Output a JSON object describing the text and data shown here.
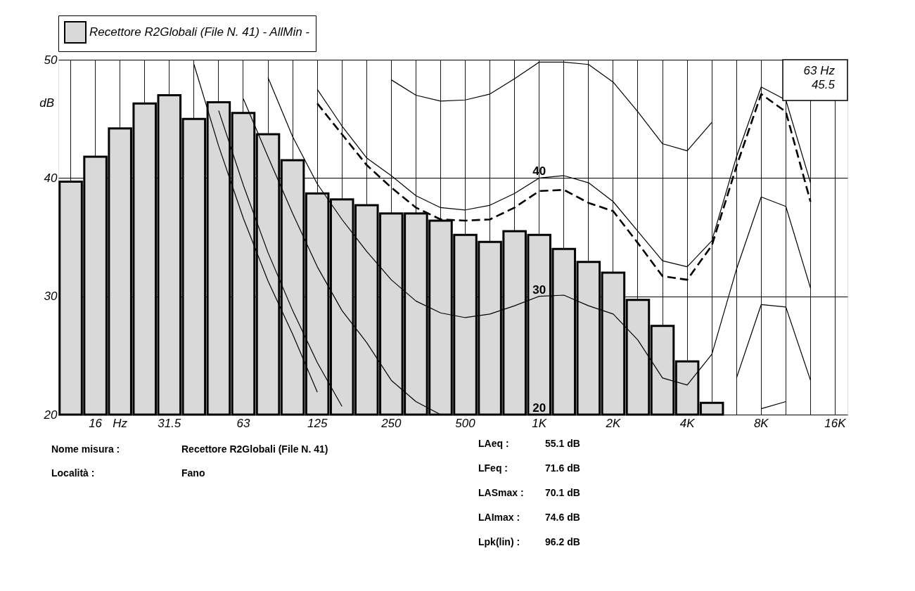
{
  "chart_data": {
    "type": "bar",
    "categories": [
      null,
      "16",
      "Hz",
      null,
      "31.5",
      null,
      null,
      "63",
      null,
      null,
      "125",
      null,
      null,
      "250",
      null,
      null,
      "500",
      null,
      null,
      "1K",
      null,
      null,
      "2K",
      null,
      null,
      "4K",
      null,
      null,
      "8K",
      null,
      null,
      "16K"
    ],
    "series": [
      {
        "name": "Recettore R2Globali (File N. 41) - AllMin -",
        "color": "#d9d9d9",
        "values": [
          39.7,
          41.8,
          44.2,
          46.3,
          47.0,
          45.0,
          46.4,
          45.5,
          43.7,
          41.5,
          38.7,
          38.2,
          37.7,
          37.0,
          37.0,
          36.4,
          35.2,
          34.6,
          35.5,
          35.2,
          34.0,
          32.9,
          32.0,
          29.7,
          27.5,
          24.5,
          21.0,
          null,
          null,
          null,
          null,
          null
        ]
      },
      {
        "type": "line",
        "color": "#000000",
        "line_style": "solid",
        "values": [
          null,
          null,
          null,
          null,
          null,
          49.6,
          42.7,
          36.6,
          31.3,
          26.8,
          21.9,
          null,
          null,
          null,
          null,
          null,
          null,
          null,
          null,
          null,
          null,
          null,
          null,
          null,
          null,
          null,
          null,
          null,
          null,
          null,
          null,
          null
        ]
      },
      {
        "type": "line",
        "color": "#000000",
        "line_style": "solid",
        "values": [
          null,
          null,
          null,
          null,
          null,
          null,
          45.7,
          39.4,
          33.7,
          28.8,
          24.4,
          20.7,
          null,
          null,
          null,
          null,
          null,
          null,
          null,
          null,
          null,
          null,
          null,
          null,
          null,
          null,
          null,
          null,
          20.5,
          21.1,
          null,
          null
        ]
      },
      {
        "type": "line",
        "color": "#000000",
        "line_style": "solid",
        "values": [
          null,
          null,
          null,
          null,
          null,
          null,
          null,
          46.7,
          41.8,
          37.0,
          32.5,
          28.8,
          26.1,
          22.9,
          21.1,
          20.0,
          null,
          null,
          null,
          null,
          null,
          null,
          null,
          null,
          null,
          null,
          null,
          23.1,
          29.3,
          29.1,
          22.9,
          null
        ]
      },
      {
        "type": "line",
        "color": "#000000",
        "line_style": "solid",
        "values": [
          null,
          null,
          null,
          null,
          null,
          null,
          null,
          null,
          48.5,
          43.5,
          39.5,
          36.5,
          33.8,
          31.4,
          29.6,
          28.6,
          28.2,
          28.5,
          29.2,
          30.0,
          30.1,
          29.2,
          28.5,
          26.3,
          23.1,
          22.5,
          25.1,
          32.3,
          38.4,
          37.6,
          30.7,
          null
        ]
      },
      {
        "type": "line",
        "color": "#000000",
        "line_style": "solid",
        "values": [
          null,
          null,
          null,
          null,
          null,
          null,
          null,
          null,
          null,
          null,
          47.5,
          44.4,
          41.7,
          40.2,
          38.5,
          37.5,
          37.3,
          37.7,
          38.7,
          40.0,
          40.2,
          39.6,
          38.0,
          35.5,
          33.0,
          32.5,
          34.7,
          41.8,
          47.7,
          46.6,
          39.6,
          null
        ]
      },
      {
        "type": "line",
        "color": "#000000",
        "line_style": "solid",
        "values": [
          null,
          null,
          null,
          null,
          null,
          null,
          null,
          null,
          null,
          null,
          null,
          null,
          null,
          48.3,
          47.0,
          46.5,
          46.6,
          47.1,
          48.4,
          49.8,
          49.8,
          49.6,
          48.1,
          45.6,
          42.9,
          42.3,
          44.7,
          null,
          null,
          null,
          null,
          null
        ]
      },
      {
        "type": "line",
        "color": "#000000",
        "line_style": "dashed",
        "values": [
          null,
          null,
          null,
          null,
          null,
          null,
          null,
          null,
          null,
          null,
          46.3,
          43.7,
          41.1,
          39.2,
          37.5,
          36.5,
          36.4,
          36.5,
          37.5,
          38.9,
          39.0,
          37.9,
          37.2,
          34.5,
          31.7,
          31.4,
          34.3,
          41.0,
          47.1,
          45.6,
          38.0,
          null
        ]
      }
    ],
    "ylabel": "dB",
    "ylim": [
      20,
      50
    ],
    "yticks": [
      20,
      30,
      40,
      50
    ],
    "grid": true,
    "legend": "top",
    "annotations": [
      "63 Hz\n45.5",
      {
        "text": "40",
        "x": "1K",
        "y": 40
      },
      {
        "text": "30",
        "x": "1K",
        "y": 30
      },
      {
        "text": "20",
        "x": "1K",
        "y": 20
      },
      "Nome misura :",
      "Recettore R2Globali (File N. 41)",
      "Località :",
      "Fano",
      "LAeq :",
      "55.1  dB",
      "LFeq :",
      "71.6  dB",
      "LASmax :",
      "70.1  dB",
      "LAImax :",
      "74.6  dB",
      "Lpk(lin) :",
      "96.2  dB"
    ]
  }
}
